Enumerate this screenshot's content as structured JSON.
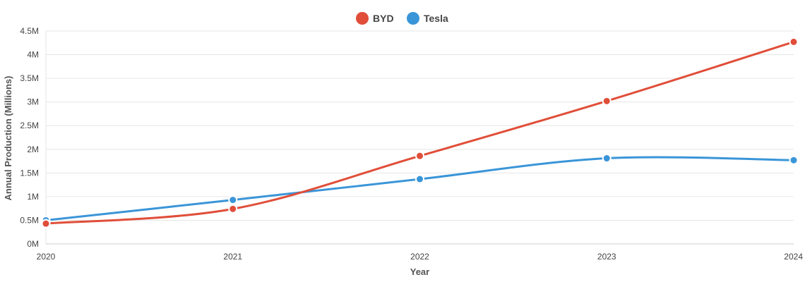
{
  "chart_data": {
    "type": "line",
    "x": [
      "2020",
      "2021",
      "2022",
      "2023",
      "2024"
    ],
    "series": [
      {
        "name": "BYD",
        "color": "#e04e39",
        "values": [
          0.43,
          0.74,
          1.86,
          3.02,
          4.27
        ]
      },
      {
        "name": "Tesla",
        "color": "#3a95d8",
        "values": [
          0.5,
          0.93,
          1.37,
          1.81,
          1.77
        ]
      }
    ],
    "xlabel": "Year",
    "ylabel": "Annual Production (Millions)",
    "ylim": [
      0,
      4.5
    ],
    "y_ticks": [
      0,
      0.5,
      1,
      1.5,
      2,
      2.5,
      3,
      3.5,
      4,
      4.5
    ],
    "y_tick_labels": [
      "0M",
      "0.5M",
      "1M",
      "1.5M",
      "2M",
      "2.5M",
      "3M",
      "3.5M",
      "4M",
      "4.5M"
    ],
    "grid": true,
    "legend_position": "top-center"
  }
}
